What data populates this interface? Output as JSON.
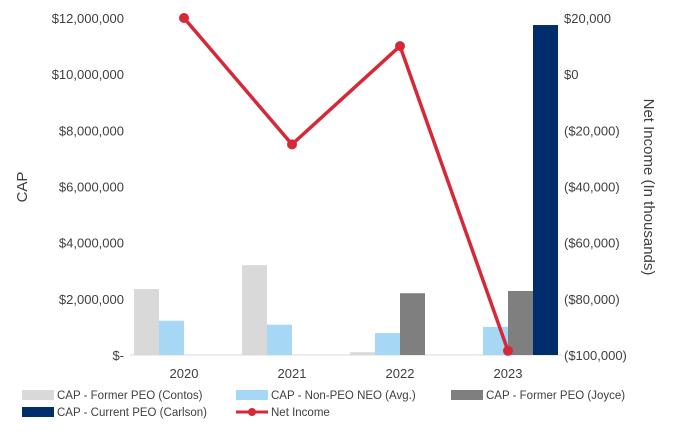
{
  "chart_data": {
    "type": "bar",
    "title": "",
    "categories": [
      "2020",
      "2021",
      "2022",
      "2023"
    ],
    "ylabel": "CAP",
    "ylabel_right": "Net Income (In thousands)",
    "ylim": [
      0,
      12000000
    ],
    "ylim_right": [
      -100000,
      20000
    ],
    "yticks": [
      {
        "value": 0,
        "label": "$-"
      },
      {
        "value": 2000000,
        "label": "$2,000,000"
      },
      {
        "value": 4000000,
        "label": "$4,000,000"
      },
      {
        "value": 6000000,
        "label": "$6,000,000"
      },
      {
        "value": 8000000,
        "label": "$8,000,000"
      },
      {
        "value": 10000000,
        "label": "$10,000,000"
      },
      {
        "value": 12000000,
        "label": "$12,000,000"
      }
    ],
    "yticks_right": [
      {
        "value": -100000,
        "label": "($100,000)"
      },
      {
        "value": -80000,
        "label": "($80,000)"
      },
      {
        "value": -60000,
        "label": "($60,000)"
      },
      {
        "value": -40000,
        "label": "($40,000)"
      },
      {
        "value": -20000,
        "label": "($20,000)"
      },
      {
        "value": 0,
        "label": "$0"
      },
      {
        "value": 20000,
        "label": "$20,000"
      }
    ],
    "series": [
      {
        "name": "CAP - Former PEO (Contos)",
        "color": "#d9d9d9",
        "values": [
          2350000,
          3200000,
          100000,
          null
        ]
      },
      {
        "name": "CAP - Non-PEO NEO (Avg.)",
        "color": "#a6d8f5",
        "values": [
          1220000,
          1080000,
          780000,
          1000000
        ]
      },
      {
        "name": "CAP - Former PEO (Joyce)",
        "color": "#7f7f7f",
        "values": [
          null,
          null,
          2200000,
          2280000
        ]
      },
      {
        "name": "CAP - Current PEO (Carlson)",
        "color": "#002e6d",
        "values": [
          null,
          null,
          null,
          11750000
        ]
      }
    ],
    "line_series": {
      "name": "Net Income",
      "color": "#d62836",
      "axis": "right",
      "values": [
        20000,
        -25000,
        10000,
        -98500
      ]
    },
    "legend_position": "bottom",
    "grid": false
  }
}
